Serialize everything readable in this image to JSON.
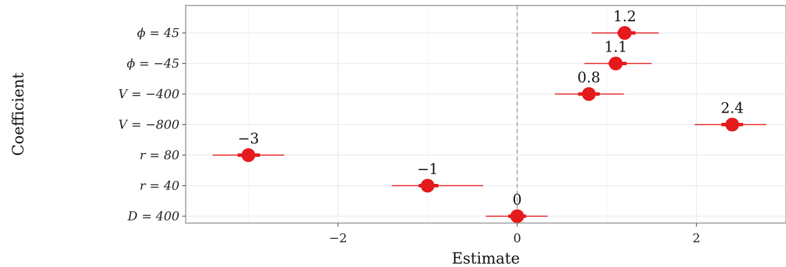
{
  "chart_data": {
    "type": "scatter",
    "subtype": "coefficient-forest",
    "title": "",
    "xlabel": "Estimate",
    "ylabel": "Coefficient",
    "xlim": [
      -3.7,
      3.0
    ],
    "xticks": [
      -2,
      0,
      2
    ],
    "xtick_labels": [
      "−2",
      "0",
      "2"
    ],
    "reference_line_x": 0,
    "grid": true,
    "categories": [
      "D = 400",
      "r = 40",
      "r = 80",
      "V = −800",
      "V = −400",
      "ϕ = −45",
      "ϕ = 45"
    ],
    "series": [
      {
        "estimates": [
          0,
          -1,
          -3,
          2.4,
          0.8,
          1.1,
          1.2
        ],
        "ci95_low": [
          -0.35,
          -1.4,
          -3.4,
          1.98,
          0.42,
          0.75,
          0.83
        ],
        "ci95_high": [
          0.34,
          -0.38,
          -2.6,
          2.78,
          1.19,
          1.5,
          1.58
        ],
        "ci_inner_low": [
          -0.1,
          -1.1,
          -3.12,
          2.28,
          0.68,
          1.02,
          1.12
        ],
        "ci_inner_high": [
          0.1,
          -0.88,
          -2.87,
          2.52,
          0.92,
          1.22,
          1.32
        ],
        "labels": [
          "0",
          "−1",
          "−3",
          "2.4",
          "0.8",
          "1.1",
          "1.2"
        ]
      }
    ],
    "colors": {
      "point": "#e41a1c",
      "line": "#e41a1c",
      "reference": "#999999",
      "grid": "#ebebeb",
      "border": "#7f7f7f"
    }
  }
}
